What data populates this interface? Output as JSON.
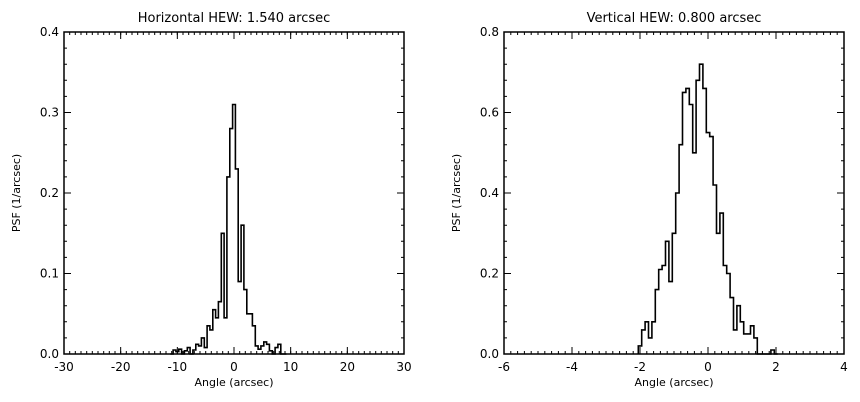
{
  "chart_data": [
    {
      "type": "line",
      "step": true,
      "title": "Horizontal HEW: 1.540 arcsec",
      "xlabel": "Angle (arcsec)",
      "ylabel": "PSF (1/arcsec)",
      "xlim": [
        -30,
        30
      ],
      "ylim": [
        0,
        0.4
      ],
      "xticks": [
        -30,
        -20,
        -10,
        0,
        10,
        20,
        30
      ],
      "yticks": [
        0.0,
        0.1,
        0.2,
        0.3,
        0.4
      ],
      "xtick_labels": [
        "-30",
        "-20",
        "-10",
        "0",
        "10",
        "20",
        "30"
      ],
      "ytick_labels": [
        "0.0",
        "0.1",
        "0.2",
        "0.3",
        "0.4"
      ],
      "x_minor": 1,
      "y_minor": 0.02,
      "series": [
        {
          "x": [
            -11,
            -10.5,
            -10,
            -9.5,
            -9,
            -8.5,
            -8,
            -7.5,
            -7,
            -6.5,
            -6,
            -5.5,
            -5,
            -4.5,
            -4,
            -3.5,
            -3,
            -2.5,
            -2,
            -1.5,
            -1,
            -0.5,
            0,
            0.5,
            1,
            1.5,
            2,
            2.5,
            3,
            3.5,
            4,
            4.5,
            5,
            5.5,
            6,
            6.5,
            7,
            7.5,
            8,
            8.5,
            9
          ],
          "y": [
            0,
            0.005,
            0.003,
            0.006,
            0,
            0.004,
            0.008,
            0,
            0.005,
            0.012,
            0.01,
            0.02,
            0.008,
            0.035,
            0.03,
            0.055,
            0.045,
            0.065,
            0.15,
            0.045,
            0.22,
            0.28,
            0.31,
            0.23,
            0.09,
            0.16,
            0.08,
            0.05,
            0.05,
            0.035,
            0.01,
            0.006,
            0.01,
            0.015,
            0.012,
            0.004,
            0,
            0.008,
            0.012,
            0,
            0
          ]
        }
      ]
    },
    {
      "type": "line",
      "step": true,
      "title": "Vertical HEW: 0.800 arcsec",
      "xlabel": "Angle (arcsec)",
      "ylabel": "PSF (1/arcsec)",
      "xlim": [
        -6,
        4
      ],
      "ylim": [
        0,
        0.8
      ],
      "xticks": [
        -6,
        -4,
        -2,
        0,
        2,
        4
      ],
      "yticks": [
        0.0,
        0.2,
        0.4,
        0.6,
        0.8
      ],
      "xtick_labels": [
        "-6",
        "-4",
        "-2",
        "0",
        "2",
        "4"
      ],
      "ytick_labels": [
        "0.0",
        "0.2",
        "0.4",
        "0.6",
        "0.8"
      ],
      "x_minor": 0.2,
      "y_minor": 0.04,
      "series": [
        {
          "x": [
            -2.0,
            -1.9,
            -1.8,
            -1.7,
            -1.6,
            -1.5,
            -1.4,
            -1.3,
            -1.2,
            -1.1,
            -1.0,
            -0.9,
            -0.8,
            -0.7,
            -0.6,
            -0.5,
            -0.4,
            -0.3,
            -0.2,
            -0.1,
            0.0,
            0.1,
            0.2,
            0.3,
            0.4,
            0.5,
            0.6,
            0.7,
            0.8,
            0.9,
            1.0,
            1.1,
            1.2,
            1.3,
            1.4,
            1.5,
            1.6,
            1.7,
            1.8,
            1.9,
            2.0
          ],
          "y": [
            0.02,
            0.06,
            0.08,
            0.04,
            0.08,
            0.16,
            0.21,
            0.22,
            0.28,
            0.18,
            0.3,
            0.4,
            0.52,
            0.65,
            0.66,
            0.62,
            0.5,
            0.68,
            0.72,
            0.66,
            0.55,
            0.54,
            0.42,
            0.3,
            0.35,
            0.22,
            0.2,
            0.14,
            0.06,
            0.12,
            0.08,
            0.05,
            0.05,
            0.07,
            0.04,
            0.0,
            0.0,
            0.0,
            0.0,
            0.01,
            0.0
          ]
        }
      ]
    }
  ]
}
